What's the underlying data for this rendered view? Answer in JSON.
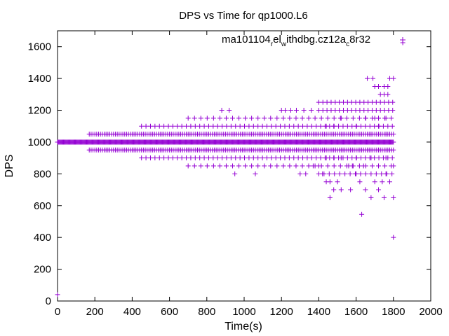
{
  "chart_data": {
    "type": "scatter",
    "title": "DPS vs Time for qp1000.L6",
    "xlabel": "Time(s)",
    "ylabel": "DPS",
    "xlim": [
      0,
      2000
    ],
    "ylim": [
      0,
      1700
    ],
    "xticks": [
      0,
      200,
      400,
      600,
      800,
      1000,
      1200,
      1400,
      1600,
      1800,
      2000
    ],
    "yticks": [
      0,
      200,
      400,
      600,
      800,
      1000,
      1200,
      1400,
      1600
    ],
    "grid": false,
    "legend_position": "top-right",
    "series": [
      {
        "name_parts": {
          "a": "ma101104",
          "b": "r",
          "c": "el",
          "d": "w",
          "e": "ithdbg.cz12a",
          "f": "c",
          "g": "8r32"
        },
        "color": "#9400d3",
        "marker": "+",
        "points": [
          [
            0,
            40
          ],
          [
            1850,
            1625
          ],
          [
            1800,
            400
          ],
          [
            1630,
            545
          ],
          [
            1460,
            650
          ],
          [
            1660,
            1400
          ],
          [
            1690,
            1400
          ],
          [
            1780,
            1400
          ],
          [
            1800,
            1400
          ],
          [
            1700,
            1350
          ],
          [
            1720,
            1350
          ],
          [
            1750,
            1350
          ],
          [
            1770,
            1350
          ],
          [
            1730,
            1300
          ],
          [
            1750,
            1300
          ],
          [
            1770,
            1300
          ],
          [
            880,
            1200
          ],
          [
            920,
            1200
          ],
          [
            1200,
            1200
          ],
          [
            1220,
            1200
          ],
          [
            1250,
            1200
          ],
          [
            1280,
            1200
          ],
          [
            1320,
            1200
          ],
          [
            1360,
            1200
          ],
          [
            1700,
            1150
          ],
          [
            1720,
            1150
          ],
          [
            1760,
            1150
          ],
          [
            1780,
            750
          ],
          [
            1760,
            800
          ],
          [
            1740,
            750
          ],
          [
            1720,
            700
          ],
          [
            1700,
            750
          ],
          [
            1680,
            650
          ],
          [
            1650,
            700
          ],
          [
            1620,
            750
          ],
          [
            1600,
            800
          ],
          [
            1580,
            850
          ],
          [
            1570,
            700
          ],
          [
            1520,
            700
          ],
          [
            1500,
            750
          ],
          [
            1480,
            700
          ],
          [
            1460,
            750
          ],
          [
            1440,
            750
          ],
          [
            1420,
            800
          ],
          [
            1400,
            850
          ],
          [
            1370,
            850
          ],
          [
            1330,
            800
          ],
          [
            1300,
            800
          ],
          [
            1750,
            650
          ],
          [
            1800,
            650
          ],
          [
            1440,
            1100
          ],
          [
            1480,
            1100
          ],
          [
            1520,
            1150
          ],
          [
            1560,
            1050
          ],
          [
            1600,
            1100
          ],
          [
            1650,
            1150
          ],
          [
            1680,
            1050
          ],
          [
            1720,
            1100
          ],
          [
            1760,
            1050
          ],
          [
            1440,
            900
          ],
          [
            1480,
            900
          ],
          [
            1520,
            900
          ],
          [
            1560,
            850
          ],
          [
            1600,
            900
          ],
          [
            1640,
            850
          ],
          [
            1680,
            900
          ],
          [
            1720,
            850
          ],
          [
            1760,
            900
          ],
          [
            1800,
            850
          ],
          [
            950,
            800
          ],
          [
            1060,
            800
          ]
        ]
      }
    ],
    "generated_bands": [
      {
        "x_from": 0,
        "x_to": 1800,
        "step": 4,
        "y": 1000
      },
      {
        "x_from": 170,
        "x_to": 1800,
        "step": 10,
        "y": 1050
      },
      {
        "x_from": 170,
        "x_to": 1800,
        "step": 10,
        "y": 950
      },
      {
        "x_from": 450,
        "x_to": 1800,
        "step": 24,
        "y": 1100
      },
      {
        "x_from": 450,
        "x_to": 1800,
        "step": 24,
        "y": 900
      },
      {
        "x_from": 700,
        "x_to": 1800,
        "step": 34,
        "y": 1150
      },
      {
        "x_from": 700,
        "x_to": 1800,
        "step": 34,
        "y": 850
      },
      {
        "x_from": 1400,
        "x_to": 1800,
        "step": 22,
        "y": 1250
      },
      {
        "x_from": 1400,
        "x_to": 1800,
        "step": 22,
        "y": 1200
      },
      {
        "x_from": 1400,
        "x_to": 1800,
        "step": 28,
        "y": 800
      }
    ]
  }
}
